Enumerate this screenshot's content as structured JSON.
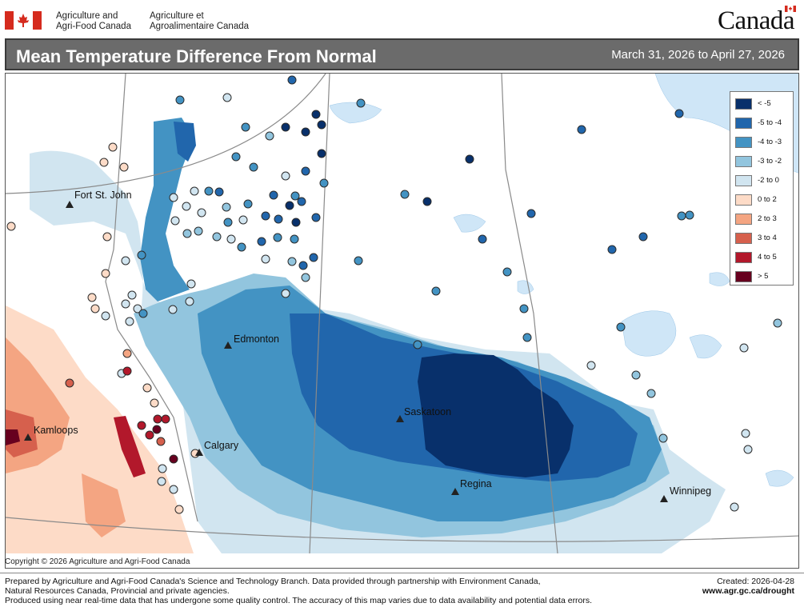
{
  "header": {
    "dept_en_line1": "Agriculture and",
    "dept_en_line2": "Agri-Food Canada",
    "dept_fr_line1": "Agriculture et",
    "dept_fr_line2": "Agroalimentaire Canada",
    "wordmark": "Canada"
  },
  "title": "Mean Temperature Difference From Normal",
  "date_range": "March 31, 2026 to April 27, 2026",
  "cities": {
    "fort_st_john": "Fort St. John",
    "edmonton": "Edmonton",
    "saskatoon": "Saskatoon",
    "kamloops": "Kamloops",
    "calgary": "Calgary",
    "regina": "Regina",
    "winnipeg": "Winnipeg"
  },
  "legend": [
    {
      "label": "< -5",
      "color": "#08306b"
    },
    {
      "label": "-5 to -4",
      "color": "#2166ac"
    },
    {
      "label": "-4 to -3",
      "color": "#4393c3"
    },
    {
      "label": "-3 to -2",
      "color": "#92c5de"
    },
    {
      "label": "-2 to 0",
      "color": "#d1e5f0"
    },
    {
      "label": "0 to 2",
      "color": "#fddbc7"
    },
    {
      "label": "2 to 3",
      "color": "#f4a582"
    },
    {
      "label": "3 to 4",
      "color": "#d6604d"
    },
    {
      "label": "4 to 5",
      "color": "#b2182b"
    },
    {
      "label": "> 5",
      "color": "#67001f"
    }
  ],
  "copyright": "Copyright © 2026 Agriculture and Agri-Food Canada",
  "footer": {
    "line1": "Prepared by Agriculture and Agri-Food Canada's Science and Technology Branch. Data provided through partnership with Environment Canada,",
    "line2": "Natural Resources Canada, Provincial and private agencies.",
    "line3": "Produced using near real-time data that has undergone some quality control. The accuracy of this map varies due to data availability and potential data errors.",
    "created": "Created: 2026-04-28",
    "url": "www.agr.gc.ca/drought"
  },
  "colors": {
    "water": "#cfe6f7",
    "boundary": "#8a8a8a"
  }
}
